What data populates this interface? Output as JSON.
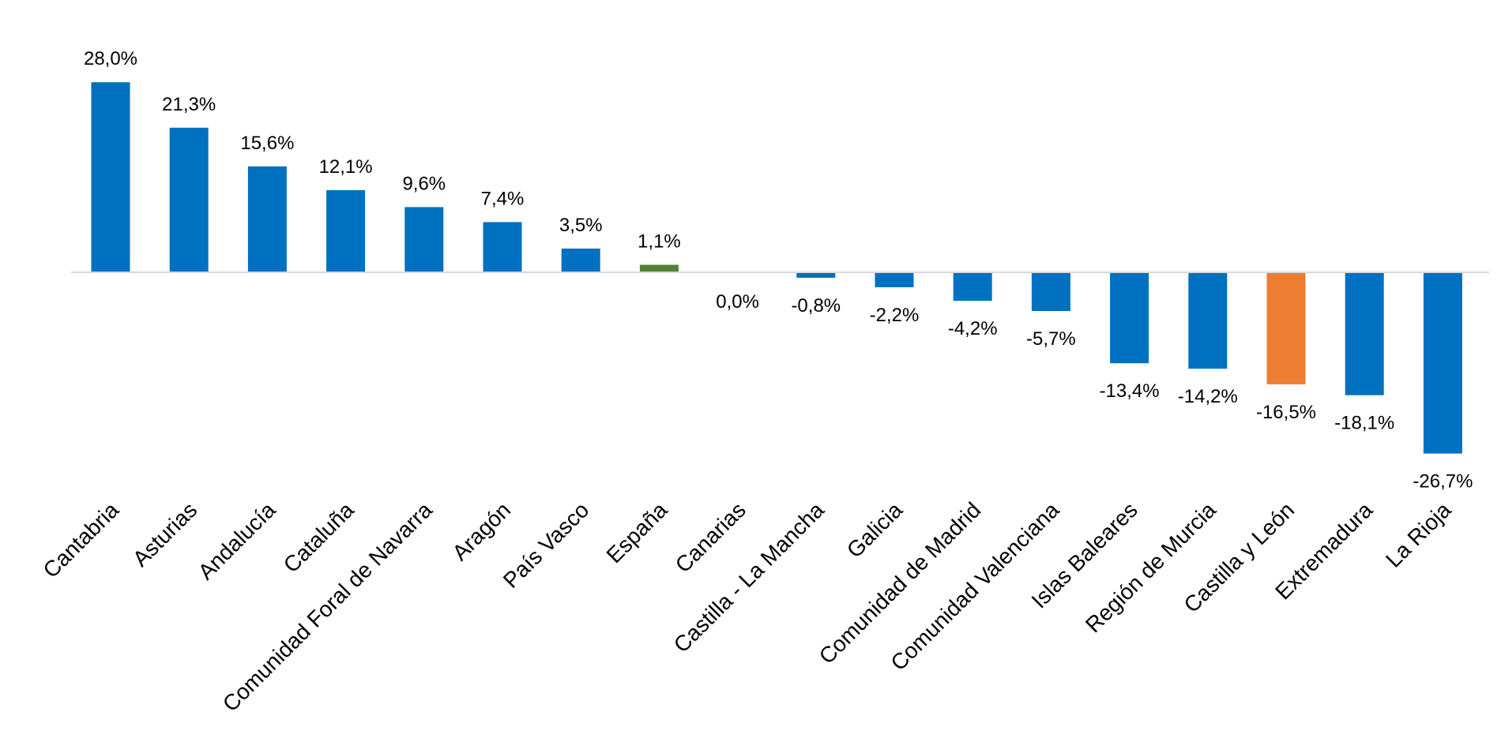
{
  "chart_data": {
    "type": "bar",
    "title": "",
    "xlabel": "",
    "ylabel": "",
    "categories": [
      "Cantabria",
      "Asturias",
      "Andalucía",
      "Cataluña",
      "Comunidad Foral de Navarra",
      "Aragón",
      "País Vasco",
      "España",
      "Canarias",
      "Castilla - La Mancha",
      "Galicia",
      "Comunidad de Madrid",
      "Comunidad Valenciana",
      "Islas Baleares",
      "Región de Murcia",
      "Castilla y León",
      "Extremadura",
      "La Rioja"
    ],
    "values": [
      28.0,
      21.3,
      15.6,
      12.1,
      9.6,
      7.4,
      3.5,
      1.1,
      0.0,
      -0.8,
      -2.2,
      -4.2,
      -5.7,
      -13.4,
      -14.2,
      -16.5,
      -18.1,
      -26.7
    ],
    "value_labels": [
      "28,0%",
      "21,3%",
      "15,6%",
      "12,1%",
      "9,6%",
      "7,4%",
      "3,5%",
      "1,1%",
      "0,0%",
      "-0,8%",
      "-2,2%",
      "-4,2%",
      "-5,7%",
      "-13,4%",
      "-14,2%",
      "-16,5%",
      "-18,1%",
      "-26,7%"
    ],
    "bar_colors": [
      "#0070C0",
      "#0070C0",
      "#0070C0",
      "#0070C0",
      "#0070C0",
      "#0070C0",
      "#0070C0",
      "#548235",
      "#0070C0",
      "#0070C0",
      "#0070C0",
      "#0070C0",
      "#0070C0",
      "#0070C0",
      "#0070C0",
      "#ED7D31",
      "#0070C0",
      "#0070C0"
    ],
    "ylim": [
      -26.7,
      28.0
    ],
    "grid": false,
    "legend": "none",
    "colors": {
      "default": "#0070C0",
      "highlight_spain": "#548235",
      "highlight_castilla_leon": "#ED7D31",
      "baseline": "#D9D9D9"
    }
  }
}
